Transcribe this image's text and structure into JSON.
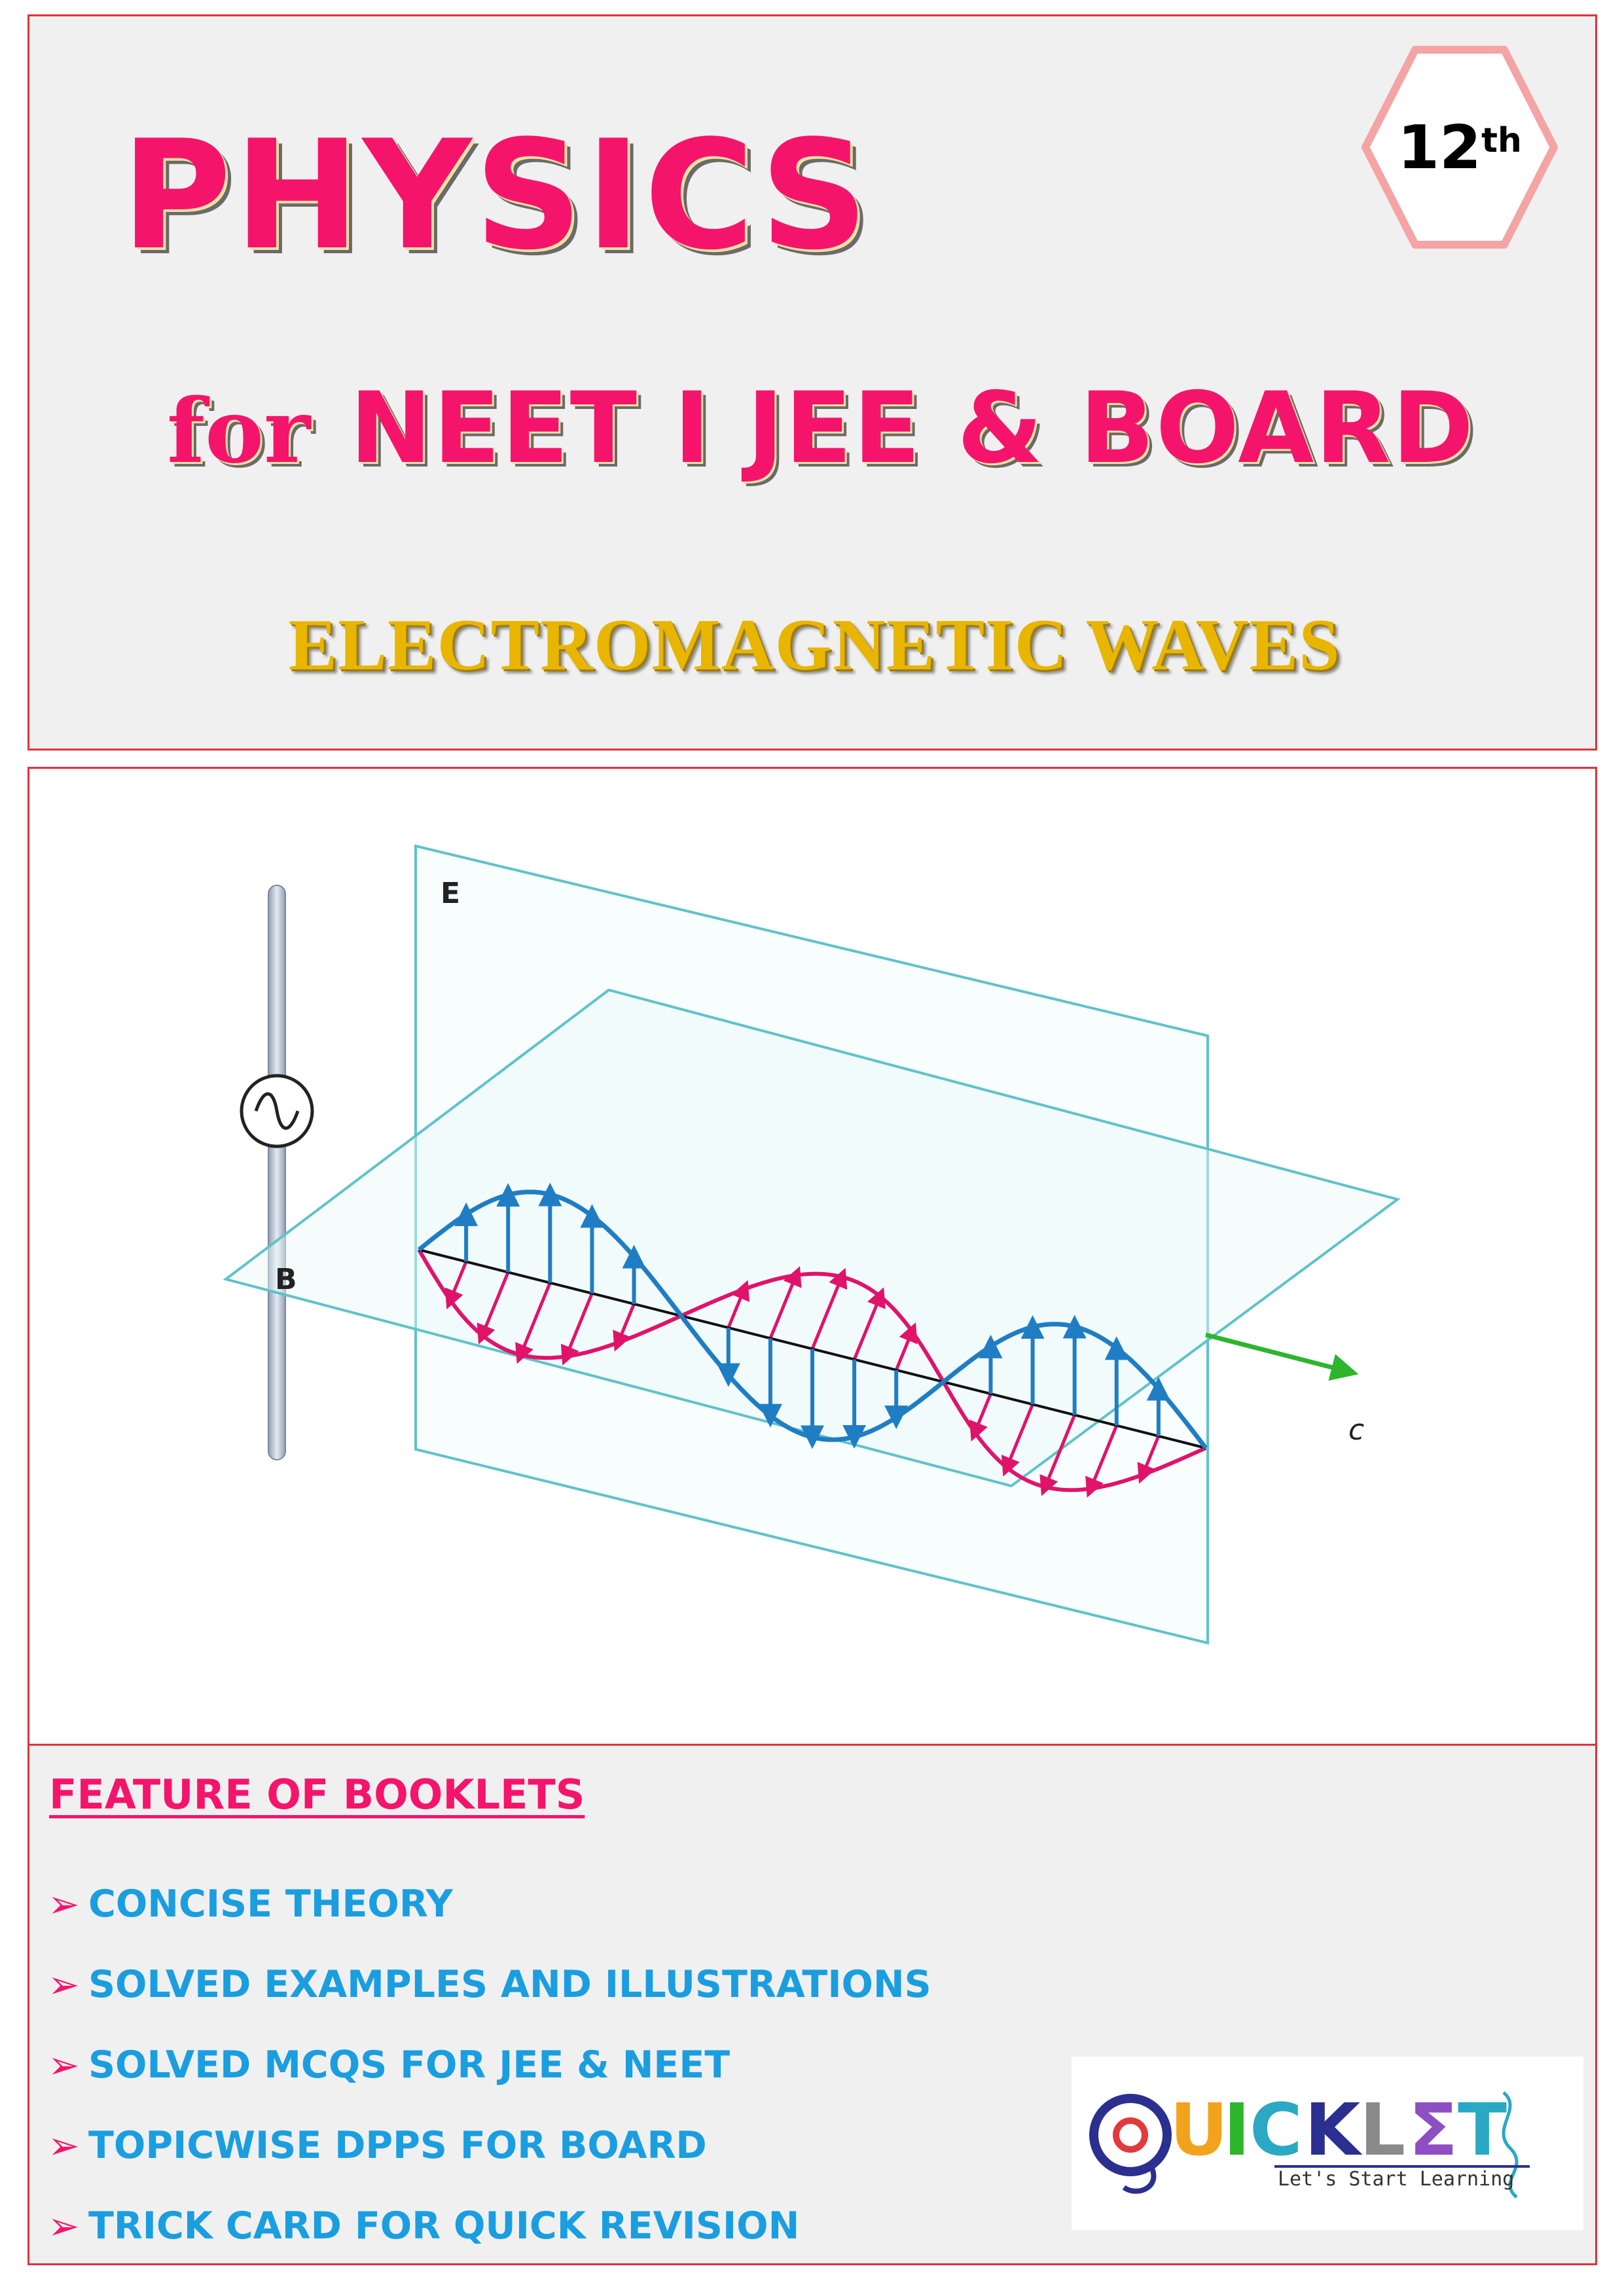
{
  "header": {
    "title": "PHYSICS",
    "subtitle_for": "for",
    "subtitle_rest": "NEET I JEE & BOARD",
    "topic": "ELECTROMAGNETIC WAVES",
    "grade_number": "12",
    "grade_suffix": "th"
  },
  "figure": {
    "label_e": "E",
    "label_b": "B",
    "label_c": "c",
    "colors": {
      "electric": "#1f7dc4",
      "magnetic": "#e0136b",
      "plane": "#5ec3c9",
      "propagation": "#2db52d"
    }
  },
  "features": {
    "heading": "FEATURE OF BOOKLETS",
    "items": [
      "CONCISE THEORY",
      "SOLVED EXAMPLES AND ILLUSTRATIONS",
      "SOLVED MCQS FOR JEE & NEET",
      "TOPICWISE DPPS FOR BOARD",
      "TRICK CARD FOR QUICK REVISION"
    ]
  },
  "logo": {
    "letters": [
      "Q",
      "U",
      "I",
      "C",
      "K",
      "L",
      "Σ",
      "T"
    ],
    "tagline": "Let's Start Learning"
  }
}
